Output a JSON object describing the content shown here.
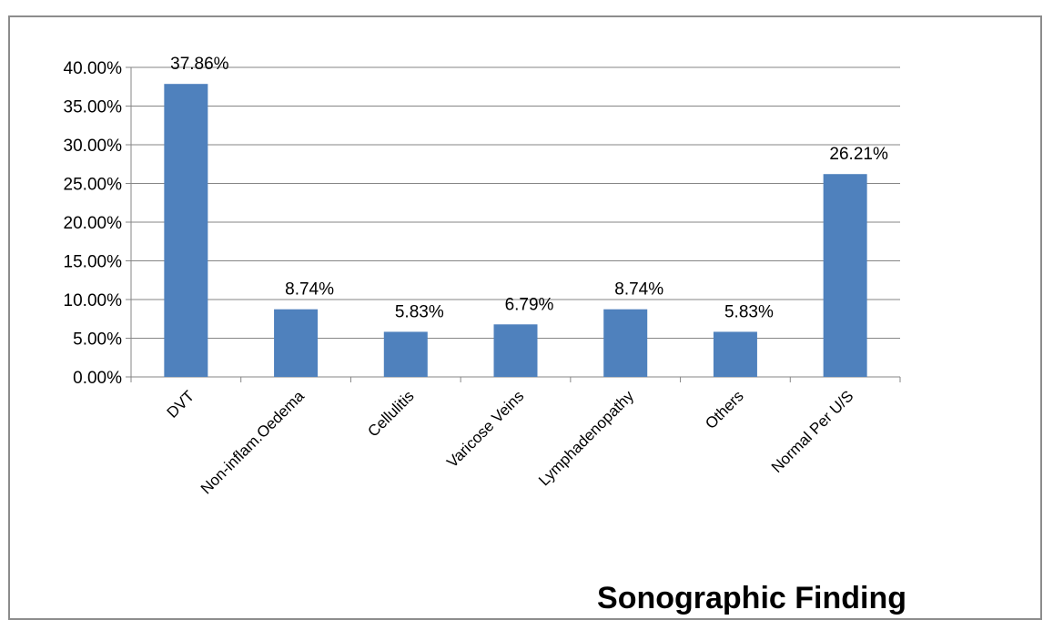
{
  "chart_data": {
    "type": "bar",
    "title": "Sonographic Finding",
    "xlabel": "",
    "ylabel": "",
    "categories": [
      "DVT",
      "Non-inflam.Oedema",
      "Cellulitis",
      "Varicose Veins",
      "Lymphadenopathy",
      "Others",
      "Normal Per U/S"
    ],
    "values": [
      37.86,
      8.74,
      5.83,
      6.79,
      8.74,
      5.83,
      26.21
    ],
    "data_labels": [
      "37.86%",
      "8.74%",
      "5.83%",
      "6.79%",
      "8.74%",
      "5.83%",
      "26.21%"
    ],
    "ylim": [
      0,
      40
    ],
    "yticks": [
      0,
      5,
      10,
      15,
      20,
      25,
      30,
      35,
      40
    ],
    "ytick_labels": [
      "0.00%",
      "5.00%",
      "10.00%",
      "15.00%",
      "20.00%",
      "25.00%",
      "30.00%",
      "35.00%",
      "40.00%"
    ],
    "grid": true,
    "legend": "none",
    "bar_color": "#4f81bd",
    "grid_color": "#868686"
  }
}
